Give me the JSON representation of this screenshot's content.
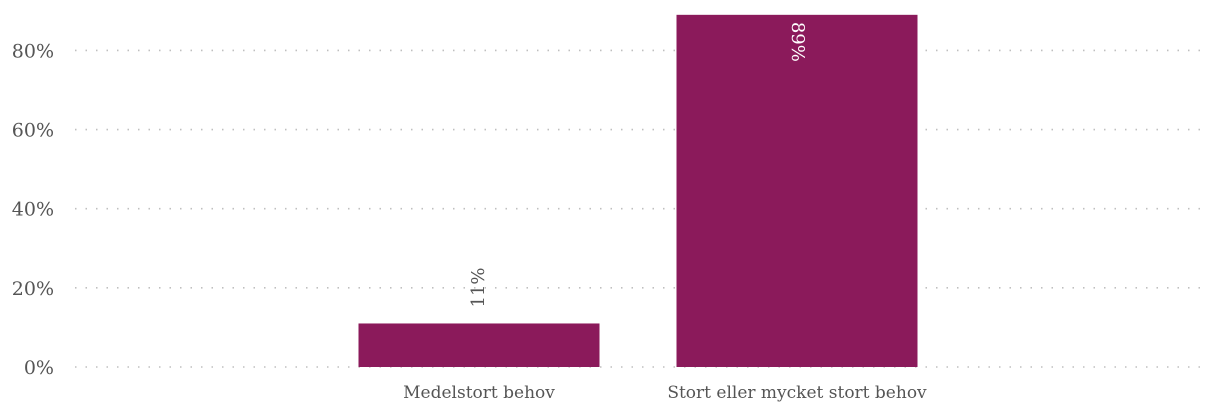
{
  "chart_data": {
    "type": "bar",
    "categories": [
      "Medelstort behov",
      "Stort eller mycket stort behov"
    ],
    "values": [
      11,
      89
    ],
    "value_labels": [
      "11%",
      "89%"
    ],
    "bar_color": "#8b1a5b",
    "label_colors": [
      "#555555",
      "#ffffff"
    ],
    "label_positions": [
      "outside",
      "inside"
    ],
    "ylim": [
      0,
      89
    ],
    "yticks": [
      0,
      20,
      40,
      60,
      80
    ],
    "ytick_labels": [
      "0%",
      "20%",
      "40%",
      "60%",
      "80%"
    ],
    "grid": true,
    "grid_style": "dotted"
  }
}
